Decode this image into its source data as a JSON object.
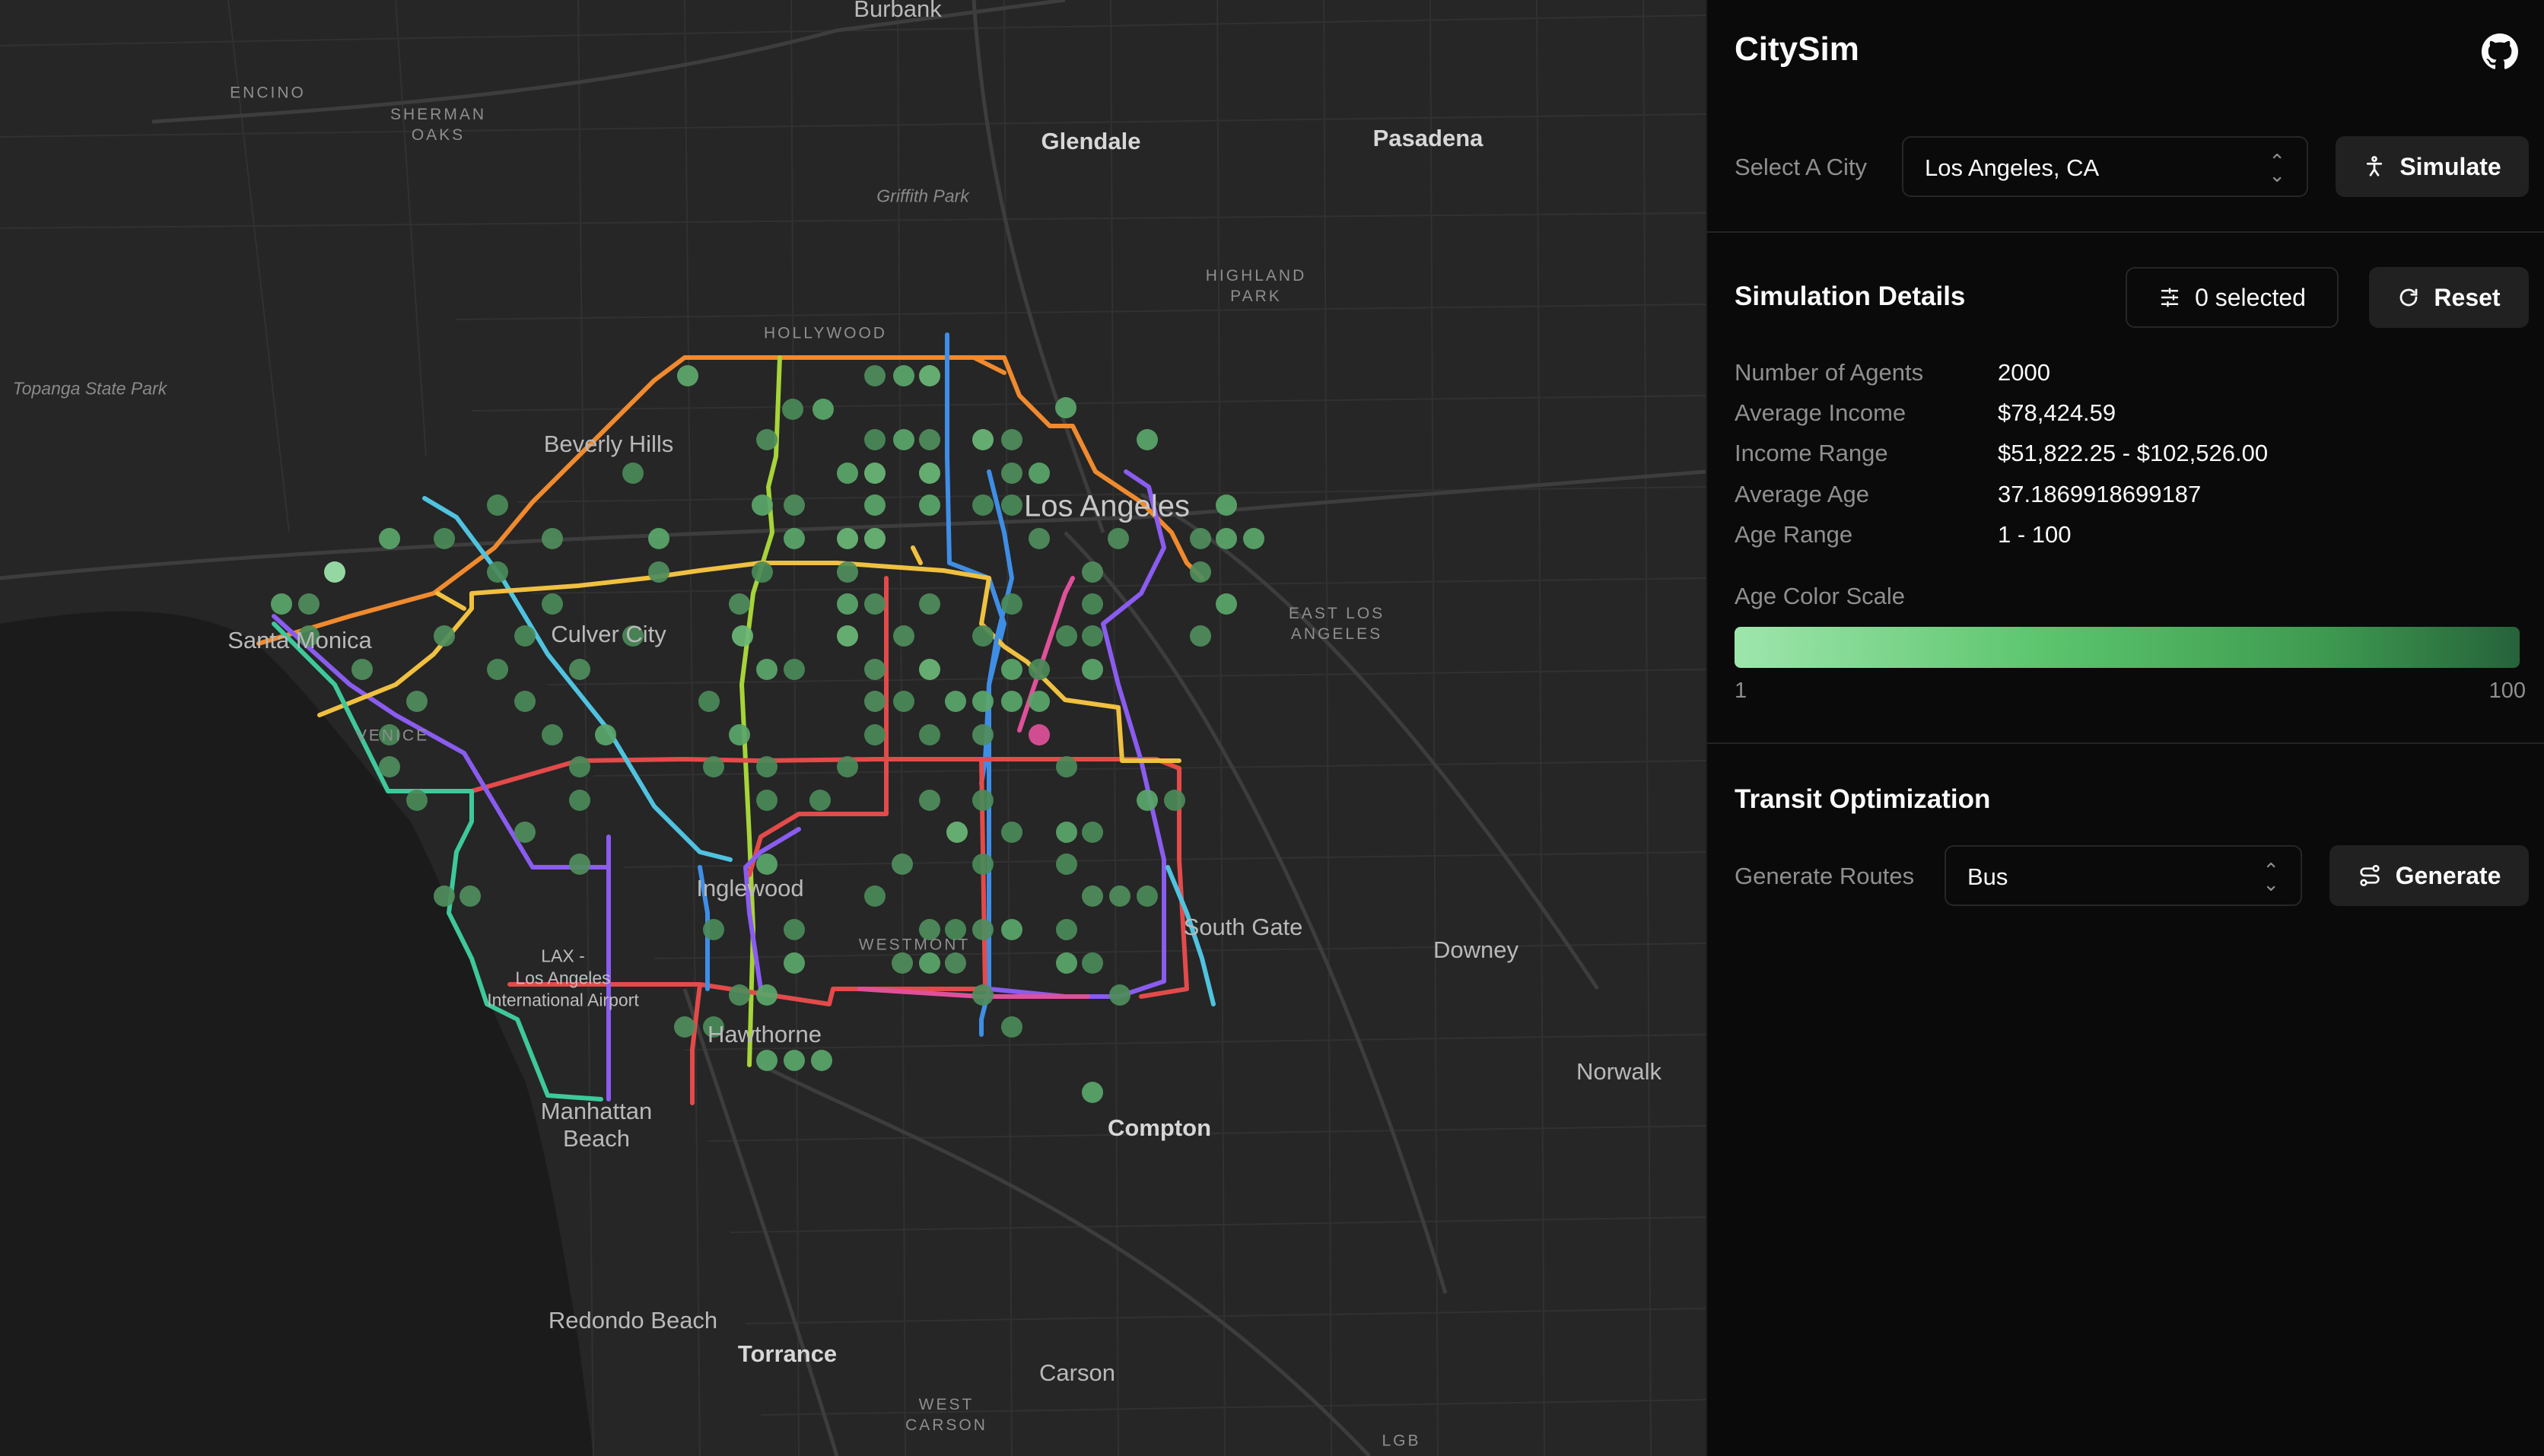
{
  "app": {
    "title": "CitySim"
  },
  "header": {
    "github_icon": "github-icon"
  },
  "city_select": {
    "label": "Select A City",
    "value": "Los Angeles, CA",
    "simulate_label": "Simulate"
  },
  "simulation": {
    "title": "Simulation Details",
    "filter_label": "0 selected",
    "reset_label": "Reset",
    "details": [
      {
        "key": "Number of Agents",
        "value": "2000"
      },
      {
        "key": "Average Income",
        "value": "$78,424.59"
      },
      {
        "key": "Income Range",
        "value": "$51,822.25 - $102,526.00"
      },
      {
        "key": "Average Age",
        "value": "37.1869918699187"
      },
      {
        "key": "Age Range",
        "value": "1 - 100"
      }
    ],
    "age_scale": {
      "label": "Age Color Scale",
      "min": "1",
      "max": "100",
      "colors": [
        "#9ee6ac",
        "#5bc46c",
        "#3e9a50",
        "#26623a"
      ]
    }
  },
  "transit": {
    "title": "Transit Optimization",
    "routes_label": "Generate Routes",
    "routes_value": "Bus",
    "generate_label": "Generate"
  },
  "map": {
    "labels": [
      {
        "id": "burbank",
        "text": "Burbank"
      },
      {
        "id": "encino",
        "text": "ENCINO"
      },
      {
        "id": "sherman",
        "text": "SHERMAN\nOAKS"
      },
      {
        "id": "glendale",
        "text": "Glendale"
      },
      {
        "id": "pasadena",
        "text": "Pasadena"
      },
      {
        "id": "griffith",
        "text": "Griffith Park"
      },
      {
        "id": "highland",
        "text": "HIGHLAND\nPARK"
      },
      {
        "id": "hollywood",
        "text": "HOLLYWOOD"
      },
      {
        "id": "topanga",
        "text": "Topanga State Park"
      },
      {
        "id": "beverly",
        "text": "Beverly Hills"
      },
      {
        "id": "losangeles",
        "text": "Los Angeles"
      },
      {
        "id": "santamonica",
        "text": "Santa Monica"
      },
      {
        "id": "culver",
        "text": "Culver City"
      },
      {
        "id": "eastla",
        "text": "EAST LOS\nANGELES"
      },
      {
        "id": "venice",
        "text": "VENICE"
      },
      {
        "id": "inglewood",
        "text": "Inglewood"
      },
      {
        "id": "southgate",
        "text": "South Gate"
      },
      {
        "id": "downey",
        "text": "Downey"
      },
      {
        "id": "westmont",
        "text": "WESTMONT"
      },
      {
        "id": "lax",
        "text": "LAX -\nLos Angeles\nInternational Airport"
      },
      {
        "id": "hawthorne",
        "text": "Hawthorne"
      },
      {
        "id": "norwalk",
        "text": "Norwalk"
      },
      {
        "id": "manhattan",
        "text": "Manhattan\nBeach"
      },
      {
        "id": "compton",
        "text": "Compton"
      },
      {
        "id": "redondo",
        "text": "Redondo Beach"
      },
      {
        "id": "torrance",
        "text": "Torrance"
      },
      {
        "id": "carson",
        "text": "Carson"
      },
      {
        "id": "westcarson",
        "text": "WEST\nCARSON"
      },
      {
        "id": "lgb",
        "text": "LGB"
      }
    ],
    "route_colors": [
      "#f08a2e",
      "#a6d43a",
      "#3f8ee6",
      "#e44a4a",
      "#8a5cf0",
      "#4fc3e0",
      "#f0c040",
      "#e0509a",
      "#3ec99a"
    ]
  }
}
